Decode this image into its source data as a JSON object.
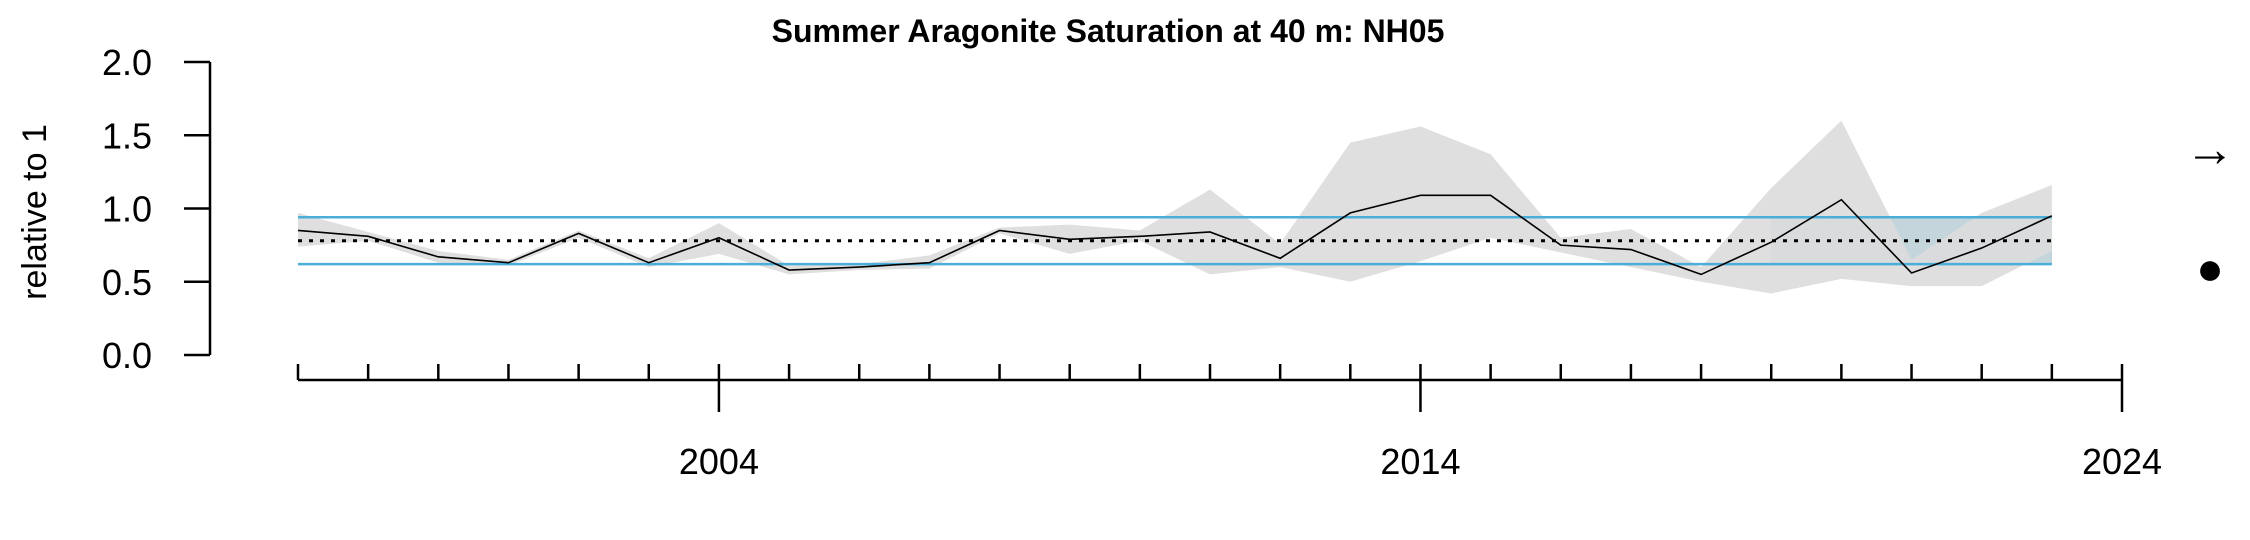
{
  "chart_data": {
    "type": "line",
    "title": "Summer Aragonite Saturation at 40 m: NH05",
    "ylabel": "relative to 1",
    "xlabel": "",
    "xlim": [
      1998,
      2024
    ],
    "ylim": [
      0,
      2
    ],
    "y_ticks": [
      {
        "value": 0.0,
        "label": "0.0"
      },
      {
        "value": 0.5,
        "label": "0.5"
      },
      {
        "value": 1.0,
        "label": "1.0"
      },
      {
        "value": 1.5,
        "label": "1.5"
      },
      {
        "value": 2.0,
        "label": "2.0"
      }
    ],
    "x_minor_ticks": [
      1998,
      1999,
      2000,
      2001,
      2002,
      2003,
      2004,
      2005,
      2006,
      2007,
      2008,
      2009,
      2010,
      2011,
      2012,
      2013,
      2014,
      2015,
      2016,
      2017,
      2018,
      2019,
      2020,
      2021,
      2022,
      2023,
      2024
    ],
    "x_major_ticks": [
      {
        "value": 2004,
        "label": "2004"
      },
      {
        "value": 2014,
        "label": "2014"
      },
      {
        "value": 2024,
        "label": "2024"
      }
    ],
    "series": [
      {
        "x": [
          1998,
          1999,
          2000,
          2001,
          2002,
          2003,
          2004,
          2005,
          2006,
          2007,
          2008,
          2009,
          2010,
          2011,
          2012,
          2013,
          2014,
          2015,
          2016,
          2017,
          2018,
          2019,
          2020,
          2021,
          2022,
          2023
        ],
        "values": [
          0.85,
          0.81,
          0.67,
          0.63,
          0.83,
          0.63,
          0.8,
          0.58,
          0.6,
          0.63,
          0.85,
          0.79,
          0.81,
          0.84,
          0.66,
          0.97,
          1.09,
          1.09,
          0.75,
          0.72,
          0.55,
          0.77,
          1.06,
          0.56,
          0.73,
          0.95
        ],
        "upper": [
          0.97,
          0.84,
          0.71,
          0.65,
          0.85,
          0.66,
          0.9,
          0.61,
          0.62,
          0.68,
          0.87,
          0.89,
          0.85,
          1.13,
          0.76,
          1.45,
          1.56,
          1.37,
          0.8,
          0.86,
          0.6,
          1.14,
          1.6,
          0.65,
          0.97,
          1.16
        ],
        "lower": [
          0.74,
          0.78,
          0.63,
          0.61,
          0.8,
          0.6,
          0.69,
          0.55,
          0.58,
          0.59,
          0.83,
          0.69,
          0.78,
          0.55,
          0.6,
          0.5,
          0.64,
          0.8,
          0.7,
          0.6,
          0.5,
          0.42,
          0.52,
          0.47,
          0.47,
          0.71
        ],
        "color": "#000000",
        "band_color": "#dcdcdc"
      }
    ],
    "mean": 0.78,
    "sd_lines": [
      0.62,
      0.94
    ],
    "highlight_start": 2019,
    "highlight_end": 2023,
    "trend_symbol": "→",
    "status_symbol": "●",
    "colors": {
      "sd_line": "#4aaed9",
      "highlight_fill": "#4aaed9",
      "highlight_overlay": "#c5d5dc",
      "mean_line": "#000000",
      "band": "#dcdcdc",
      "axis": "#000000"
    },
    "grid": false
  }
}
